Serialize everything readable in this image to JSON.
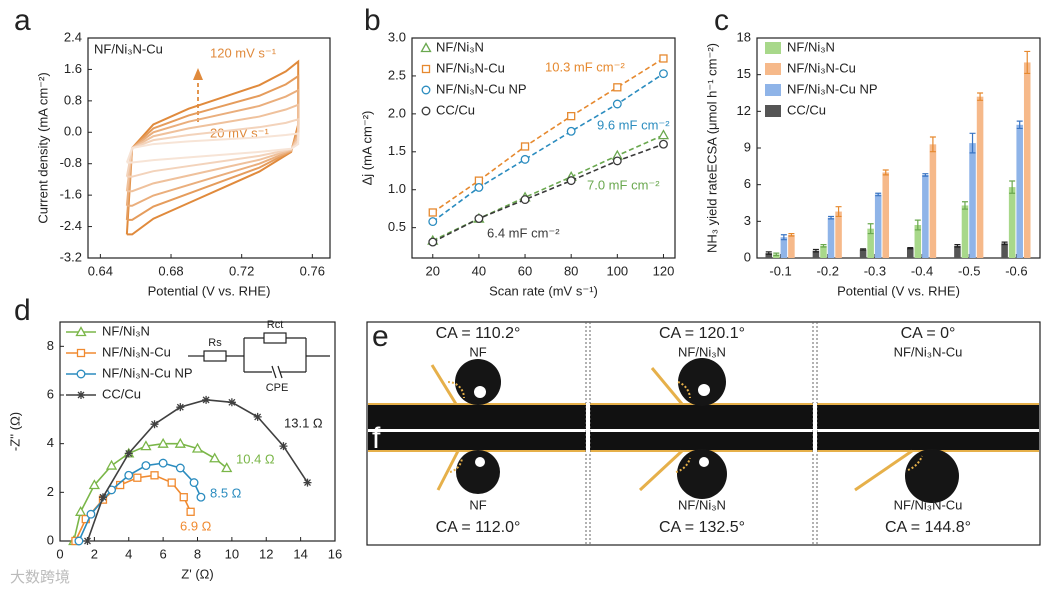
{
  "watermark": "大数跨境",
  "chart_data": [
    {
      "panel": "a",
      "type": "line",
      "title": "NF/Ni₃N-Cu",
      "xlabel": "Potential (V vs. RHE)",
      "ylabel": "Current density (mA cm⁻²)",
      "xlim": [
        0.633,
        0.77
      ],
      "ylim": [
        -3.2,
        2.4
      ],
      "xticks": [
        0.64,
        0.68,
        0.72,
        0.76
      ],
      "yticks": [
        2.4,
        1.6,
        0.8,
        {
          "value": 0,
          "label": "0.0"
        },
        -0.8,
        -1.6,
        -2.4,
        -3.2
      ],
      "markers": false,
      "dashed": false,
      "x": [
        0.655,
        0.658,
        0.67,
        0.69,
        0.71,
        0.73,
        0.745,
        0.752,
        0.752,
        0.748,
        0.73,
        0.71,
        0.69,
        0.67,
        0.658,
        0.655
      ],
      "series": [
        {
          "color": "#e08a3c",
          "values": [
            -2.6,
            -0.4,
            0.2,
            0.6,
            0.9,
            1.2,
            1.55,
            1.8,
            0.2,
            -0.5,
            -1.0,
            -1.4,
            -1.8,
            -2.2,
            -2.6,
            -2.6
          ]
        },
        {
          "color": "#e59c5c",
          "values": [
            -2.23,
            -0.4,
            0.1,
            0.43,
            0.68,
            0.93,
            1.22,
            1.43,
            0.1,
            -0.48,
            -0.9,
            -1.23,
            -1.56,
            -1.89,
            -2.23,
            -2.23
          ]
        },
        {
          "color": "#eaae7c",
          "values": [
            -1.87,
            -0.4,
            0.0,
            0.27,
            0.47,
            0.67,
            0.91,
            1.07,
            0.0,
            -0.47,
            -0.8,
            -1.07,
            -1.34,
            -1.61,
            -1.87,
            -1.87
          ]
        },
        {
          "color": "#efc19c",
          "values": [
            -1.5,
            -0.4,
            -0.1,
            0.1,
            0.25,
            0.4,
            0.58,
            0.7,
            -0.1,
            -0.45,
            -0.7,
            -0.9,
            -1.1,
            -1.3,
            -1.5,
            -1.5
          ]
        },
        {
          "color": "#f3d3bb",
          "values": [
            -1.13,
            -0.4,
            -0.2,
            -0.07,
            0.03,
            0.13,
            0.24,
            0.33,
            -0.2,
            -0.43,
            -0.6,
            -0.73,
            -0.86,
            -0.99,
            -1.13,
            -1.13
          ]
        },
        {
          "color": "#f7e4d6",
          "values": [
            -0.77,
            -0.4,
            -0.3,
            -0.23,
            -0.18,
            -0.13,
            -0.07,
            -0.03,
            -0.3,
            -0.42,
            -0.5,
            -0.57,
            -0.64,
            -0.71,
            -0.77,
            -0.77
          ]
        }
      ],
      "annotations": [
        {
          "text": "120 mV s⁻¹",
          "color": "#e08a3c"
        },
        {
          "text": "20 mV s⁻¹",
          "color": "#e08a3c"
        }
      ]
    },
    {
      "panel": "b",
      "type": "line",
      "xlabel": "Scan rate (mV s⁻¹)",
      "ylabel": "Δj (mA cm⁻²)",
      "xlim": [
        11,
        125
      ],
      "ylim": [
        0.1,
        3.0
      ],
      "xticks": [
        20,
        40,
        60,
        80,
        100,
        120
      ],
      "yticks": [
        0.5,
        {
          "value": 1,
          "label": "1.0"
        },
        1.5,
        {
          "value": 2,
          "label": "2.0"
        },
        2.5,
        {
          "value": 3,
          "label": "3.0"
        }
      ],
      "markers": true,
      "dashed": true,
      "legend": "upper left",
      "x": [
        20,
        40,
        60,
        80,
        100,
        120
      ],
      "series": [
        {
          "name": "NF/Ni₃N",
          "color": "#6aa84f",
          "marker": "triangle",
          "values": [
            0.33,
            0.62,
            0.9,
            1.17,
            1.45,
            1.72
          ]
        },
        {
          "name": "NF/Ni₃N-Cu",
          "color": "#e6892f",
          "marker": "square",
          "values": [
            0.7,
            1.12,
            1.57,
            1.97,
            2.35,
            2.73
          ]
        },
        {
          "name": "NF/Ni₃N-Cu NP",
          "color": "#2b8cbf",
          "marker": "circle",
          "values": [
            0.58,
            1.03,
            1.4,
            1.77,
            2.13,
            2.53
          ]
        },
        {
          "name": "CC/Cu",
          "color": "#3a3a3a",
          "marker": "circle",
          "values": [
            0.31,
            0.62,
            0.87,
            1.12,
            1.38,
            1.6
          ]
        }
      ],
      "annotations": [
        {
          "text": "10.3 mF cm⁻²",
          "color": "#e6892f"
        },
        {
          "text": "9.6 mF cm⁻²",
          "color": "#2b8cbf"
        },
        {
          "text": "7.0 mF cm⁻²",
          "color": "#6aa84f"
        },
        {
          "text": "6.4 mF cm⁻²",
          "color": "#3a3a3a"
        }
      ]
    },
    {
      "panel": "c",
      "type": "bar",
      "xlabel": "Potential (V vs. RHE)",
      "ylabel": "NH₃ yield rateECSA (μmol h⁻¹ cm⁻²)",
      "ylim": [
        0,
        18
      ],
      "yticks": [
        0,
        3,
        6,
        9,
        12,
        15,
        18
      ],
      "legend": "upper left",
      "categories": [
        "-0.1",
        "-0.2",
        "-0.3",
        "-0.4",
        "-0.5",
        "-0.6"
      ],
      "series": [
        {
          "name": "NF/Ni₃N",
          "color": "#a8d88a",
          "errcolor": "#6aa84f",
          "values": [
            0.3,
            1.0,
            2.4,
            2.7,
            4.3,
            5.8
          ],
          "errors": [
            0.1,
            0.1,
            0.4,
            0.4,
            0.3,
            0.5
          ]
        },
        {
          "name": "NF/Ni₃N-Cu",
          "color": "#f6b98a",
          "errcolor": "#e6892f",
          "values": [
            1.9,
            3.8,
            7.0,
            9.3,
            13.2,
            16.0
          ],
          "errors": [
            0.1,
            0.4,
            0.2,
            0.6,
            0.3,
            0.9
          ]
        },
        {
          "name": "NF/Ni₃N-Cu NP",
          "color": "#8fb4e8",
          "errcolor": "#3a75c4",
          "values": [
            1.7,
            3.3,
            5.2,
            6.8,
            9.4,
            10.9
          ],
          "errors": [
            0.2,
            0.1,
            0.1,
            0.1,
            0.8,
            0.3
          ]
        },
        {
          "name": "CC/Cu",
          "color": "#555555",
          "errcolor": "#222222",
          "values": [
            0.4,
            0.6,
            0.7,
            0.8,
            1.0,
            1.2
          ],
          "errors": [
            0.1,
            0.1,
            0.05,
            0.05,
            0.1,
            0.1
          ]
        }
      ]
    },
    {
      "panel": "d",
      "type": "line",
      "xlabel": "Z' (Ω)",
      "ylabel": "-Z'' (Ω)",
      "xlim": [
        0,
        16
      ],
      "ylim": [
        0,
        9
      ],
      "xticks": [
        0,
        2,
        4,
        6,
        8,
        10,
        12,
        14,
        16
      ],
      "yticks": [
        0,
        2,
        4,
        6,
        8
      ],
      "markers": true,
      "dashed": false,
      "legend": "upper left",
      "series": [
        {
          "name": "NF/Ni₃N",
          "color": "#7ab648",
          "marker": "triangle",
          "x": [
            0.8,
            1.2,
            2,
            3,
            4,
            5,
            6,
            7,
            8,
            9,
            9.7
          ],
          "values": [
            0,
            1.2,
            2.3,
            3.1,
            3.6,
            3.9,
            4.0,
            4.0,
            3.8,
            3.4,
            3.0
          ]
        },
        {
          "name": "NF/Ni₃N-Cu",
          "color": "#f08a30",
          "marker": "square",
          "x": [
            0.9,
            1.5,
            2.5,
            3.5,
            4.5,
            5.5,
            6.5,
            7.2,
            7.6
          ],
          "values": [
            0,
            0.9,
            1.7,
            2.3,
            2.6,
            2.7,
            2.4,
            1.8,
            1.2
          ]
        },
        {
          "name": "NF/Ni₃N-Cu NP",
          "color": "#2b8cbf",
          "marker": "circle",
          "x": [
            1.1,
            1.8,
            3,
            4,
            5,
            6,
            7,
            7.8,
            8.2
          ],
          "values": [
            0,
            1.1,
            2.1,
            2.7,
            3.1,
            3.2,
            3.0,
            2.4,
            1.8
          ]
        },
        {
          "name": "CC/Cu",
          "color": "#404040",
          "marker": "star",
          "x": [
            1.6,
            2.5,
            4,
            5.5,
            7,
            8.5,
            10,
            11.5,
            13,
            14.4
          ],
          "values": [
            0,
            1.8,
            3.6,
            4.8,
            5.5,
            5.8,
            5.7,
            5.1,
            3.9,
            2.4
          ]
        }
      ],
      "annotations": [
        {
          "text": "13.1 Ω",
          "color": "#222222"
        },
        {
          "text": "10.4 Ω",
          "color": "#7ab648"
        },
        {
          "text": "8.5 Ω",
          "color": "#2b8cbf"
        },
        {
          "text": "6.9 Ω",
          "color": "#f08a30"
        }
      ],
      "circuit": [
        "Rs",
        "Rct",
        "CPE"
      ]
    }
  ],
  "contact_angle": {
    "e": {
      "label": "e",
      "items": [
        {
          "angle": "CA = 110.2°",
          "sample": "NF"
        },
        {
          "angle": "CA = 120.1°",
          "sample": "NF/Ni₃N"
        },
        {
          "angle": "CA = 0°",
          "sample": "NF/Ni₃N-Cu"
        }
      ]
    },
    "f": {
      "label": "f",
      "items": [
        {
          "angle": "CA = 112.0°",
          "sample": "NF"
        },
        {
          "angle": "CA = 132.5°",
          "sample": "NF/Ni₃N"
        },
        {
          "angle": "CA = 144.8°",
          "sample": "NF/Ni₃N-Cu"
        }
      ]
    }
  }
}
